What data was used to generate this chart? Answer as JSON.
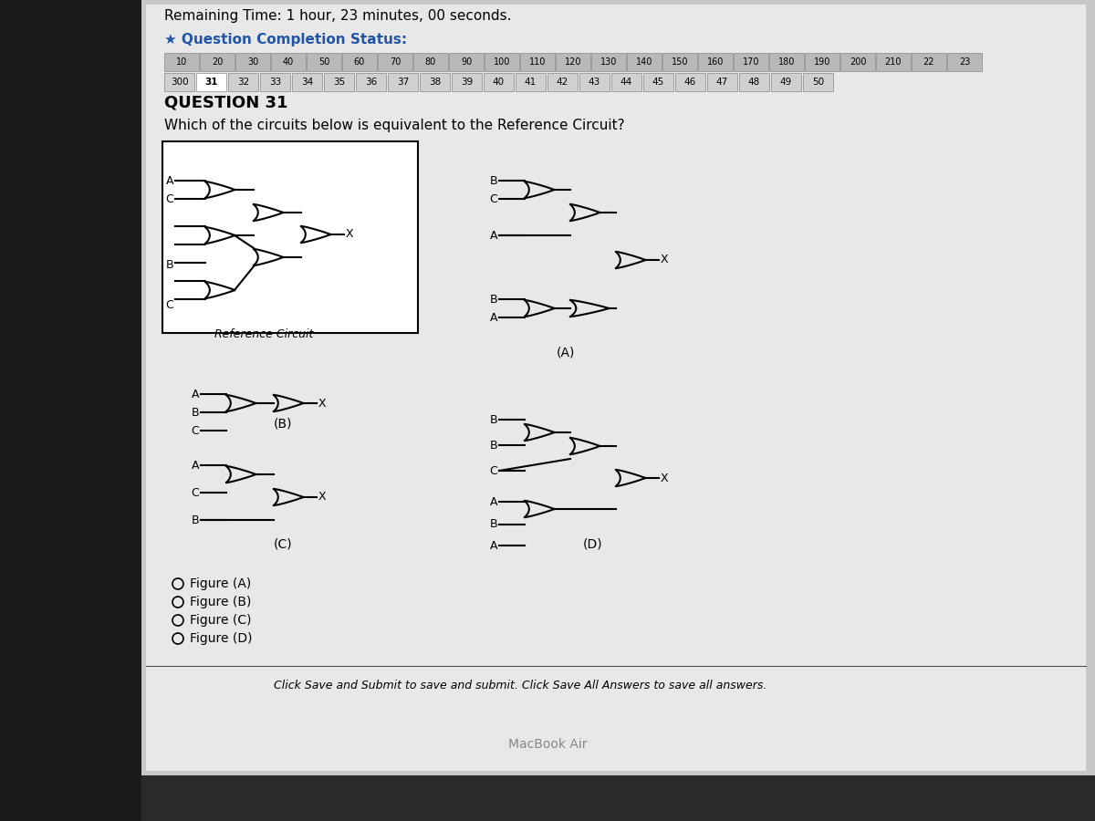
{
  "title": "Remaining Time: 1 hour, 23 minutes, 00 seconds.",
  "question_completion": "Question Completion Status:",
  "question_num": "QUESTION 31",
  "question_text": "Which of the circuits below is equivalent to the Reference Circuit?",
  "bg_color": "#d0d0d0",
  "content_bg": "#f0f0f0",
  "radio_options": [
    "Figure (A)",
    "Figure (B)",
    "Figure (C)",
    "Figure (D)"
  ],
  "footer_text": "Click Save and Submit to save and submit. Click Save All Answers to save all answers.",
  "nav_row1": [
    "10",
    "20",
    "30",
    "40",
    "50",
    "60",
    "70",
    "80",
    "90",
    "100",
    "110",
    "120",
    "130",
    "140",
    "150",
    "160",
    "170",
    "180",
    "190",
    "200",
    "210",
    "22",
    "23"
  ],
  "nav_row2": [
    "300",
    "31",
    "32",
    "33",
    "34",
    "35",
    "36",
    "37",
    "38",
    "39",
    "40",
    "41",
    "42",
    "43",
    "44",
    "45",
    "46",
    "47",
    "48",
    "49",
    "50"
  ]
}
